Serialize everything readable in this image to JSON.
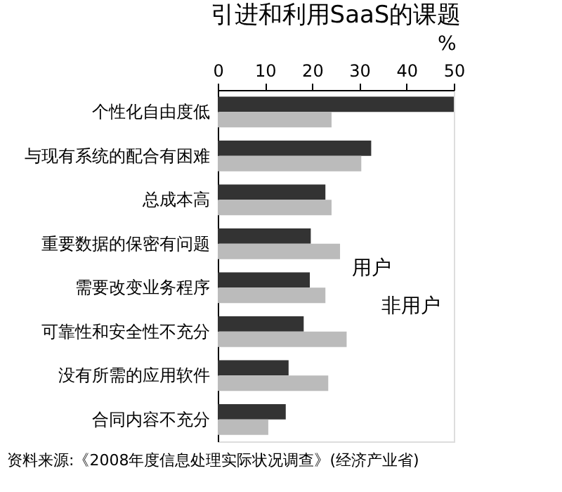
{
  "chart_data": {
    "type": "bar",
    "orientation": "horizontal",
    "title": "引进和利用SaaS的课题",
    "xlabel": "%",
    "categories": [
      "个性化自由度低",
      "与现有系统的配合有困难",
      "总成本高",
      "重要数据的保密有问题",
      "需要改变业务程序",
      "可靠性和安全性不充分",
      "没有所需的应用软件",
      "合同内容不充分"
    ],
    "series": [
      {
        "name": "用户",
        "color": "#333333",
        "values": [
          50,
          32.5,
          22.8,
          19.7,
          19.5,
          18.2,
          15,
          14.4
        ]
      },
      {
        "name": "非用户",
        "color": "#bbbbbb",
        "values": [
          24.1,
          30.4,
          24.1,
          25.9,
          22.8,
          27.3,
          23.4,
          10.7
        ]
      }
    ],
    "xlim": [
      0,
      50
    ],
    "xticks": [
      0,
      10,
      20,
      30,
      40,
      50
    ],
    "grid": false,
    "legend": "right",
    "annotations": [
      "资料来源:《2008年度信息处理实际状况调查》(经济产业省)"
    ]
  }
}
